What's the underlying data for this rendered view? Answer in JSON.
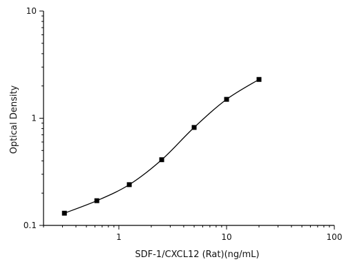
{
  "chart_data": {
    "type": "scatter",
    "title": "",
    "xlabel": "SDF-1/CXCL12 (Rat)(ng/mL)",
    "ylabel": "Optical Density",
    "xscale": "log",
    "yscale": "log",
    "xlim": [
      0.2,
      100
    ],
    "ylim": [
      0.1,
      10
    ],
    "x_tick_labels": [
      "1",
      "10",
      "100"
    ],
    "y_tick_labels": [
      "0.1",
      "1",
      "10"
    ],
    "grid": false,
    "legend": "none",
    "series": [
      {
        "x": [
          0.3125,
          0.625,
          1.25,
          2.5,
          5,
          10,
          20
        ],
        "y": [
          0.13,
          0.17,
          0.24,
          0.41,
          0.82,
          1.5,
          2.3
        ],
        "marker": "square",
        "color": "#000000",
        "fit_curve": true
      }
    ]
  }
}
